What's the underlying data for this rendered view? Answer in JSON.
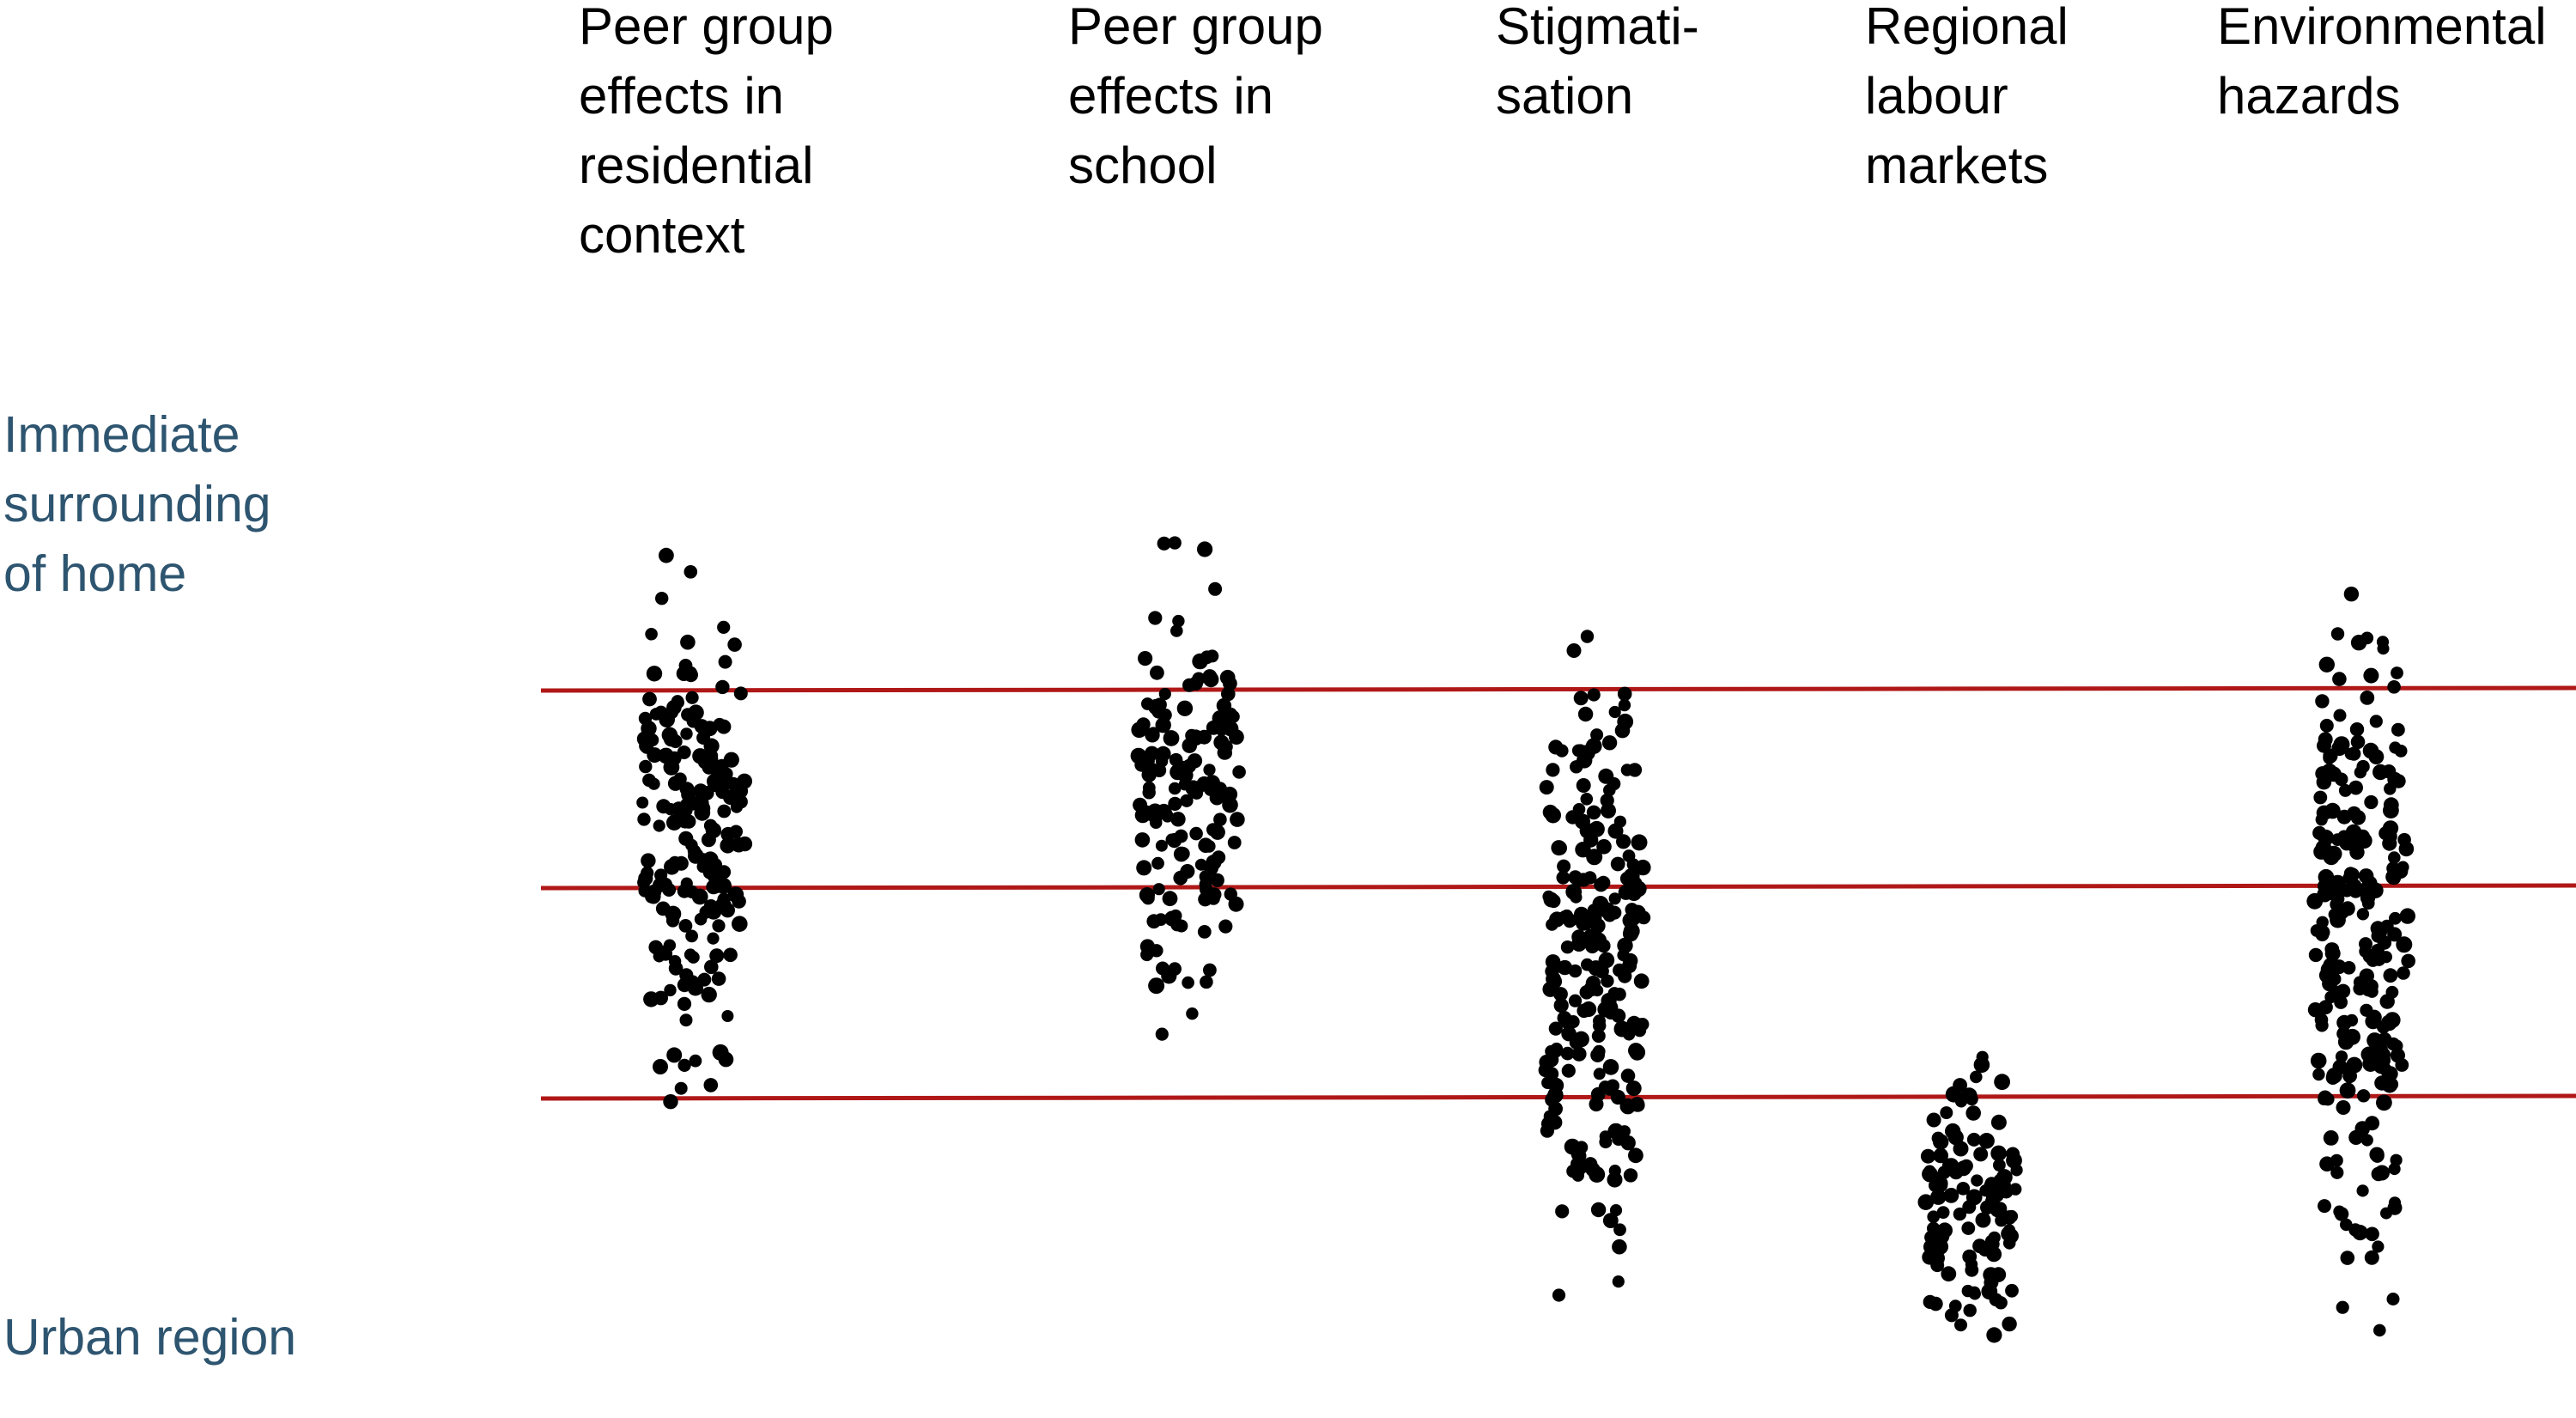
{
  "columns": [
    {
      "id": "peer-residential",
      "label": "Peer group\neffects in\nresidential\ncontext",
      "range": [
        0.93,
        0.24
      ]
    },
    {
      "id": "peer-school",
      "label": "Peer group\neffects in\nschool",
      "range": [
        0.9,
        0.33
      ]
    },
    {
      "id": "stigmatisation",
      "label": "Stigmati-\nsation",
      "range": [
        0.87,
        0.05
      ]
    },
    {
      "id": "labour-markets",
      "label": "Regional\nlabour\nmarkets",
      "range": [
        0.41,
        0.0
      ]
    },
    {
      "id": "environmental-hazards",
      "label": "Environmental\nhazards",
      "range": [
        0.89,
        0.03
      ]
    }
  ],
  "scale_labels": {
    "top": "Immediate\nsurrounding\nof home",
    "bottom": "Urban region"
  },
  "colors": {
    "scale_label": "#2e5570",
    "divider": "#b01818",
    "dot": "#000000"
  }
}
